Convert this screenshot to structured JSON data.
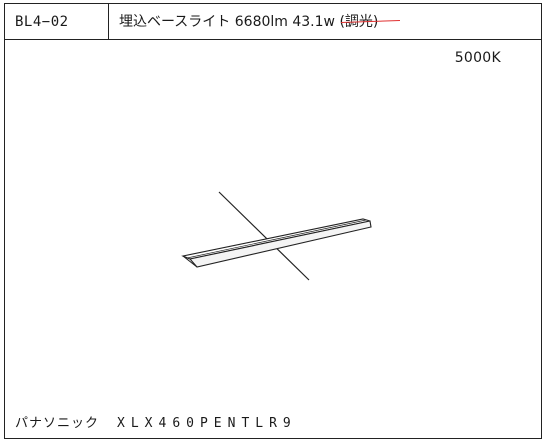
{
  "header": {
    "code": "BL4−02",
    "title_main": "埋込ベースライト 6680lm 43.1w ",
    "title_struck": "(調光)"
  },
  "color_temperature": "5000K",
  "footer": {
    "manufacturer": "パナソニック",
    "model_number": "XLX460PENTLR9"
  },
  "colors": {
    "line": "#222222",
    "strike_mark": "#e03030"
  }
}
